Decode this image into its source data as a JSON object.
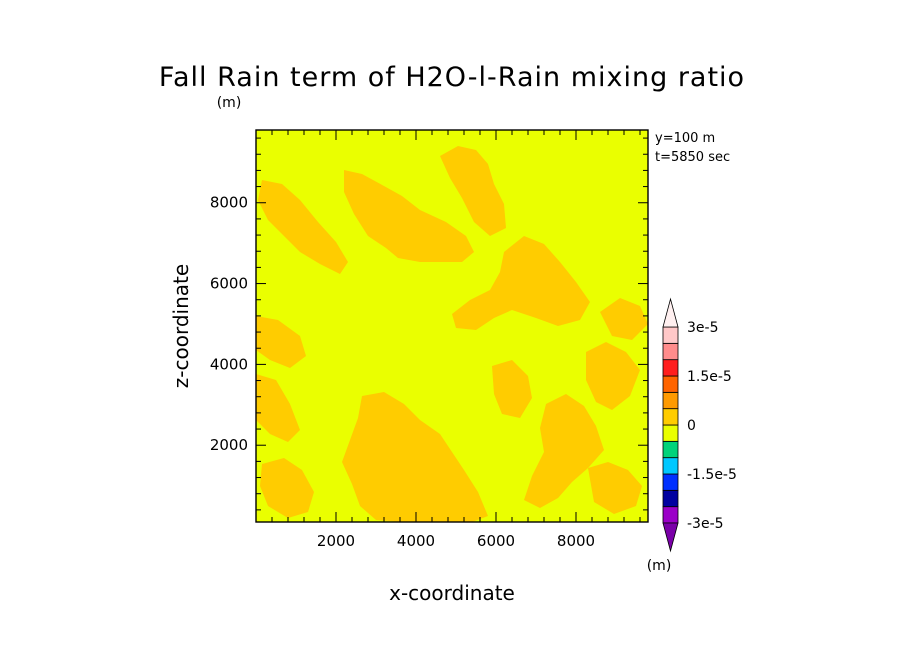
{
  "chart_data": {
    "type": "heatmap",
    "title": "Fall Rain term of H2O-l-Rain mixing ratio",
    "y_unit": "(m)",
    "xlabel": "x-coordinate",
    "ylabel": "z-coordinate",
    "xlim": [
      0,
      9800
    ],
    "ylim": [
      100,
      9800
    ],
    "x_ticks": [
      "2000",
      "4000",
      "6000",
      "8000"
    ],
    "y_ticks": [
      "2000",
      "4000",
      "6000",
      "8000"
    ],
    "annotations": [
      "y=100 m",
      "t=5850 sec"
    ],
    "field": {
      "background_value": 1e-08,
      "background_color": "#eaff00",
      "patch_value": -1e-06,
      "patch_color": "#ffcc00"
    },
    "colorbar": {
      "unit": "(m)",
      "labels": [
        "3e-5",
        "1.5e-5",
        "0",
        "-1.5e-5",
        "-3e-5"
      ],
      "label_values": [
        3e-05,
        1.5e-05,
        0,
        -1.5e-05,
        -3e-05
      ],
      "range": [
        -3e-05,
        3e-05
      ],
      "colors": [
        "#9b00c8",
        "#0000a0",
        "#0030ff",
        "#00c8ff",
        "#00d37a",
        "#eaff00",
        "#ffcc00",
        "#ff9a00",
        "#ff6400",
        "#ff1e1e",
        "#ff8c8c",
        "#ffc8c8"
      ]
    }
  }
}
